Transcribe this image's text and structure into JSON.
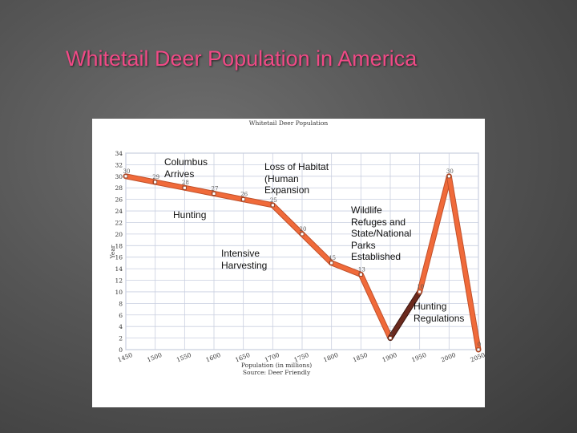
{
  "slide": {
    "title": "Whitetail Deer Population in America"
  },
  "chart_data": {
    "type": "line",
    "title": "Whitetail Deer Population",
    "xlabel": "Population (in millions)",
    "ylabel": "Year",
    "source": "Source: Deer Friendly",
    "x": [
      1450,
      1500,
      1550,
      1600,
      1650,
      1700,
      1750,
      1800,
      1850,
      1900,
      1950,
      2000,
      2050
    ],
    "series": [
      {
        "values": [
          30,
          29,
          28,
          27,
          26,
          25,
          20,
          15,
          13,
          2,
          10,
          30,
          0
        ],
        "point_labels": [
          "30",
          "29",
          "28",
          "27",
          "26",
          "25",
          "20",
          "15",
          "13",
          "2",
          "10",
          "30",
          "0"
        ]
      }
    ],
    "ylim": [
      0,
      34
    ],
    "yticks": [
      0,
      2,
      4,
      6,
      8,
      10,
      12,
      14,
      16,
      18,
      20,
      22,
      24,
      26,
      28,
      30,
      32,
      34
    ],
    "xticks": [
      "1450",
      "1500",
      "1550",
      "1600",
      "1650",
      "1700",
      "1750",
      "1800",
      "1850",
      "1900",
      "1950",
      "2000",
      "2050"
    ],
    "grid": true,
    "colors": {
      "line": "#f06a3a",
      "line_edge": "#c0502a",
      "connector": "#6b2a1e",
      "grid": "#c9cfe0"
    },
    "annotations": [
      {
        "id": "columbus",
        "text": "Columbus\nArrives"
      },
      {
        "id": "habitat",
        "text": "Loss of Habitat\n(Human\nExpansion"
      },
      {
        "id": "hunting",
        "text": "Hunting"
      },
      {
        "id": "harvesting",
        "text": "Intensive\nHarvesting"
      },
      {
        "id": "refuges",
        "text": "Wildlife\nRefuges and\nState/National\nParks\nEstablished"
      },
      {
        "id": "regulations",
        "text": "Hunting\nRegulations"
      }
    ]
  }
}
